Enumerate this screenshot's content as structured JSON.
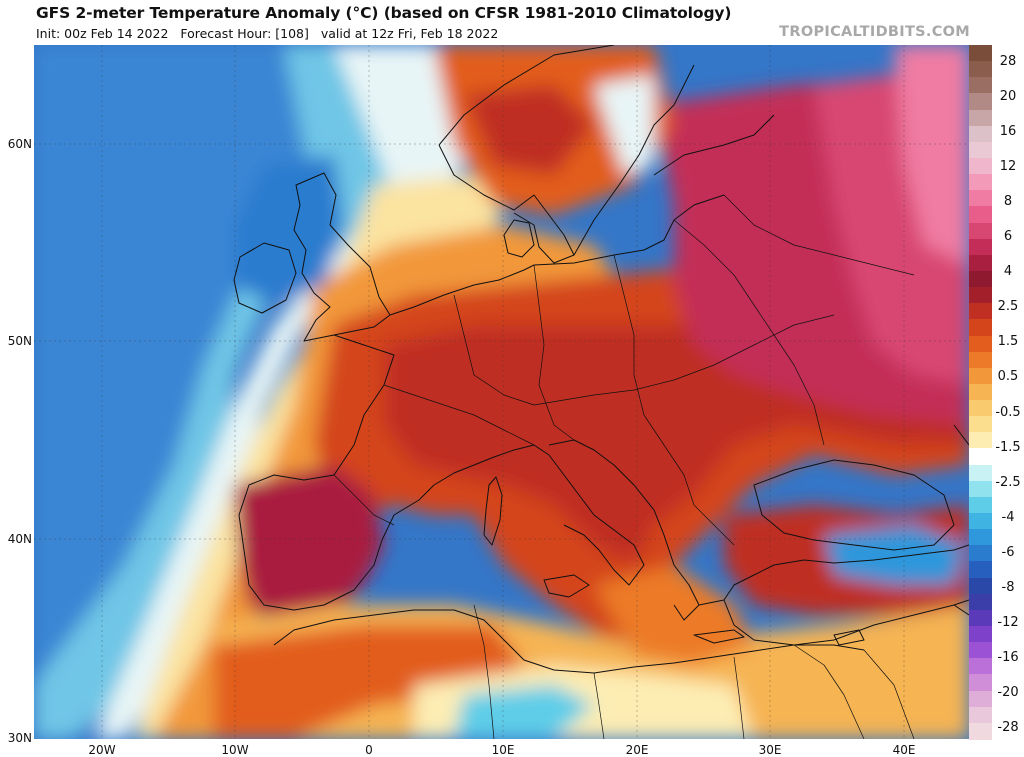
{
  "header": {
    "title": "GFS 2-meter Temperature Anomaly (°C) (based on CFSR 1981-2010 Climatology)",
    "init": "Init: 00z Feb 14 2022",
    "forecast": "Forecast Hour: [108]",
    "valid": "valid at 12z Fri, Feb 18 2022",
    "brand": "TROPICALTIDBITS.COM"
  },
  "map": {
    "lat_labels": [
      "60N",
      "50N",
      "40N",
      "30N"
    ],
    "lon_labels": [
      "20W",
      "10W",
      "0",
      "10E",
      "20E",
      "30E",
      "40E"
    ]
  },
  "colorbar": {
    "labels": [
      "28",
      "20",
      "16",
      "12",
      "8",
      "6",
      "4",
      "2.5",
      "1.5",
      "0.5",
      "-0.5",
      "-1.5",
      "-2.5",
      "-4",
      "-6",
      "-8",
      "-12",
      "-16",
      "-20",
      "-28"
    ],
    "colors": [
      "#7a4d3a",
      "#8a5d4c",
      "#9a6e62",
      "#b28a85",
      "#c8a6a8",
      "#dcc1c8",
      "#eac9d5",
      "#f0b6cc",
      "#f39ab9",
      "#f07ba3",
      "#e85d8a",
      "#d84672",
      "#c32d57",
      "#a91f3f",
      "#8f1a2f",
      "#a3202a",
      "#bf2f22",
      "#d4451c",
      "#e25d1e",
      "#ec7a28",
      "#f2983a",
      "#f6b452",
      "#f9cb6e",
      "#fbde8e",
      "#fdedb3",
      "#ffffff",
      "#c9f2f5",
      "#8fe2ee",
      "#5ecde8",
      "#3fb4e3",
      "#2f97db",
      "#2a7ccf",
      "#265fbe",
      "#2a48a8",
      "#3b3da8",
      "#5a3ab8",
      "#7d42c9",
      "#9c52d4",
      "#bb6fd9",
      "#d08ed8",
      "#dfaed8",
      "#eac8dc",
      "#f0d9df"
    ]
  }
}
